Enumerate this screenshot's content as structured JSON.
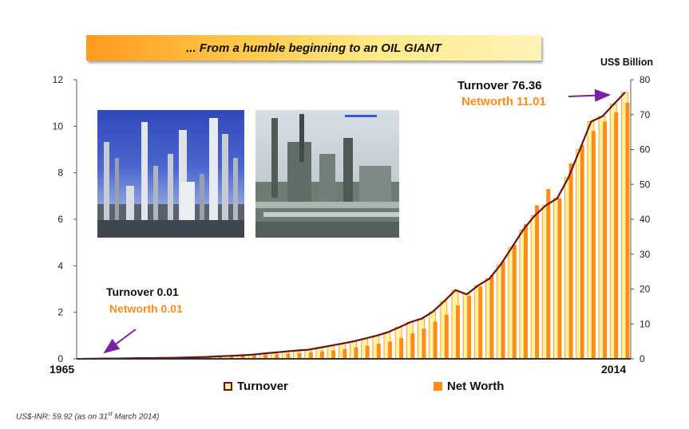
{
  "banner": {
    "title": "... From a humble beginning to an OIL GIANT"
  },
  "unit_label": "US$ Billion",
  "annotations": {
    "end_turnover": "Turnover  76.36",
    "end_networth": "Networth 11.01",
    "start_turnover": "Turnover  0.01",
    "start_networth": "Networth 0.01"
  },
  "legend": {
    "turnover": "Turnover",
    "networth": "Net Worth"
  },
  "footnote": {
    "prefix": "US$-INR: 59.92 (as on 31",
    "sup": "st",
    "suffix": " March 2014)"
  },
  "colors": {
    "bar_stroke": "#ff8c1a",
    "bar_fill": "#fff3a0",
    "networth": "#ff8c1a",
    "line": "#6b1010",
    "annotation_orange": "#ff8c1a",
    "arrow": "#7b1fa2"
  },
  "chart_data": {
    "type": "bar",
    "x_start_label": "1965",
    "x_end_label": "2014",
    "y_left": {
      "lim": [
        0,
        12
      ],
      "ticks": [
        "0",
        "2",
        "4",
        "6",
        "8",
        "10",
        "12"
      ]
    },
    "y_right": {
      "lim": [
        0,
        80
      ],
      "ticks": [
        "0",
        "10",
        "20",
        "30",
        "40",
        "50",
        "60",
        "70",
        "80"
      ]
    },
    "series": [
      {
        "name": "Turnover",
        "axis": "right",
        "style": "bar-line",
        "values": [
          0.01,
          0.05,
          0.08,
          0.1,
          0.15,
          0.2,
          0.2,
          0.25,
          0.3,
          0.4,
          0.45,
          0.55,
          0.7,
          0.85,
          1.0,
          1.2,
          1.5,
          1.8,
          2.1,
          2.4,
          2.6,
          3.2,
          3.8,
          4.4,
          5.0,
          5.8,
          6.6,
          7.6,
          9.0,
          10.5,
          11.5,
          13.5,
          16.5,
          19.7,
          18.5,
          21.0,
          23.0,
          27.0,
          32.0,
          37.0,
          41.0,
          44.0,
          46.0,
          52.0,
          60.0,
          68.0,
          69.5,
          73.0,
          76.36
        ]
      },
      {
        "name": "Net Worth",
        "axis": "left",
        "style": "bar",
        "values": [
          0.01,
          0.01,
          0.01,
          0.02,
          0.02,
          0.03,
          0.04,
          0.05,
          0.05,
          0.06,
          0.07,
          0.08,
          0.1,
          0.12,
          0.14,
          0.16,
          0.18,
          0.2,
          0.22,
          0.25,
          0.28,
          0.32,
          0.36,
          0.42,
          0.5,
          0.56,
          0.64,
          0.74,
          0.9,
          1.1,
          1.3,
          1.6,
          1.9,
          2.3,
          2.7,
          3.1,
          3.6,
          4.2,
          4.9,
          5.8,
          6.6,
          7.3,
          6.9,
          8.4,
          9.2,
          9.8,
          10.2,
          10.6,
          11.01
        ]
      }
    ]
  }
}
